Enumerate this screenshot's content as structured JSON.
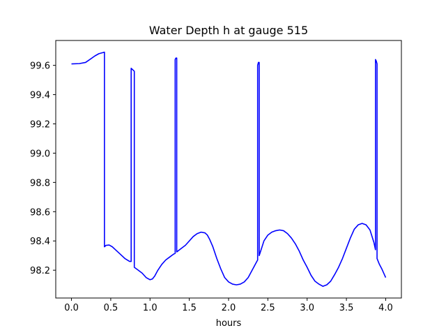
{
  "chart_data": {
    "type": "line",
    "title": "Water Depth h at gauge 515",
    "xlabel": "hours",
    "ylabel": "",
    "xlim": [
      -0.2,
      4.2
    ],
    "ylim": [
      98.01,
      99.77
    ],
    "xticks": [
      0.0,
      0.5,
      1.0,
      1.5,
      2.0,
      2.5,
      3.0,
      3.5,
      4.0
    ],
    "xtick_labels": [
      "0.0",
      "0.5",
      "1.0",
      "1.5",
      "2.0",
      "2.5",
      "3.0",
      "3.5",
      "4.0"
    ],
    "yticks": [
      98.2,
      98.4,
      98.6,
      98.8,
      99.0,
      99.2,
      99.4,
      99.6
    ],
    "ytick_labels": [
      "98.2",
      "98.4",
      "98.6",
      "98.8",
      "99.0",
      "99.2",
      "99.4",
      "99.6"
    ],
    "grid": false,
    "series": [
      {
        "color": "#0000ff",
        "x": [
          0.0,
          0.1,
          0.18,
          0.22,
          0.3,
          0.35,
          0.42,
          0.42,
          0.44,
          0.48,
          0.52,
          0.56,
          0.62,
          0.68,
          0.74,
          0.76,
          0.76,
          0.8,
          0.8,
          0.85,
          0.9,
          0.95,
          1.0,
          1.03,
          1.06,
          1.1,
          1.15,
          1.2,
          1.25,
          1.3,
          1.32,
          1.32,
          1.33,
          1.34,
          1.34,
          1.4,
          1.45,
          1.5,
          1.55,
          1.6,
          1.65,
          1.7,
          1.73,
          1.76,
          1.8,
          1.85,
          1.9,
          1.95,
          2.0,
          2.05,
          2.1,
          2.15,
          2.2,
          2.25,
          2.3,
          2.35,
          2.37,
          2.37,
          2.38,
          2.39,
          2.39,
          2.42,
          2.45,
          2.5,
          2.55,
          2.6,
          2.65,
          2.7,
          2.75,
          2.8,
          2.85,
          2.9,
          2.95,
          3.0,
          3.05,
          3.1,
          3.15,
          3.2,
          3.25,
          3.3,
          3.35,
          3.4,
          3.45,
          3.5,
          3.55,
          3.6,
          3.65,
          3.7,
          3.75,
          3.8,
          3.85,
          3.87,
          3.87,
          3.88,
          3.89,
          3.89,
          3.92,
          3.95,
          4.0
        ],
        "y": [
          99.61,
          99.612,
          99.62,
          99.635,
          99.665,
          99.68,
          99.69,
          98.36,
          98.37,
          98.372,
          98.36,
          98.34,
          98.31,
          98.28,
          98.26,
          98.26,
          99.58,
          99.56,
          98.22,
          98.2,
          98.18,
          98.15,
          98.135,
          98.14,
          98.16,
          98.2,
          98.24,
          98.27,
          98.29,
          98.31,
          98.315,
          99.64,
          99.65,
          99.65,
          98.325,
          98.35,
          98.37,
          98.4,
          98.43,
          98.45,
          98.46,
          98.455,
          98.44,
          98.41,
          98.36,
          98.28,
          98.21,
          98.15,
          98.12,
          98.105,
          98.1,
          98.105,
          98.12,
          98.15,
          98.2,
          98.25,
          98.27,
          99.6,
          99.62,
          99.62,
          98.3,
          98.35,
          98.4,
          98.44,
          98.46,
          98.47,
          98.475,
          98.47,
          98.45,
          98.42,
          98.38,
          98.33,
          98.27,
          98.22,
          98.165,
          98.125,
          98.105,
          98.09,
          98.1,
          98.125,
          98.17,
          98.22,
          98.28,
          98.35,
          98.42,
          98.48,
          98.51,
          98.52,
          98.51,
          98.475,
          98.39,
          98.34,
          99.64,
          99.63,
          99.61,
          98.28,
          98.24,
          98.21,
          98.15
        ]
      }
    ]
  }
}
